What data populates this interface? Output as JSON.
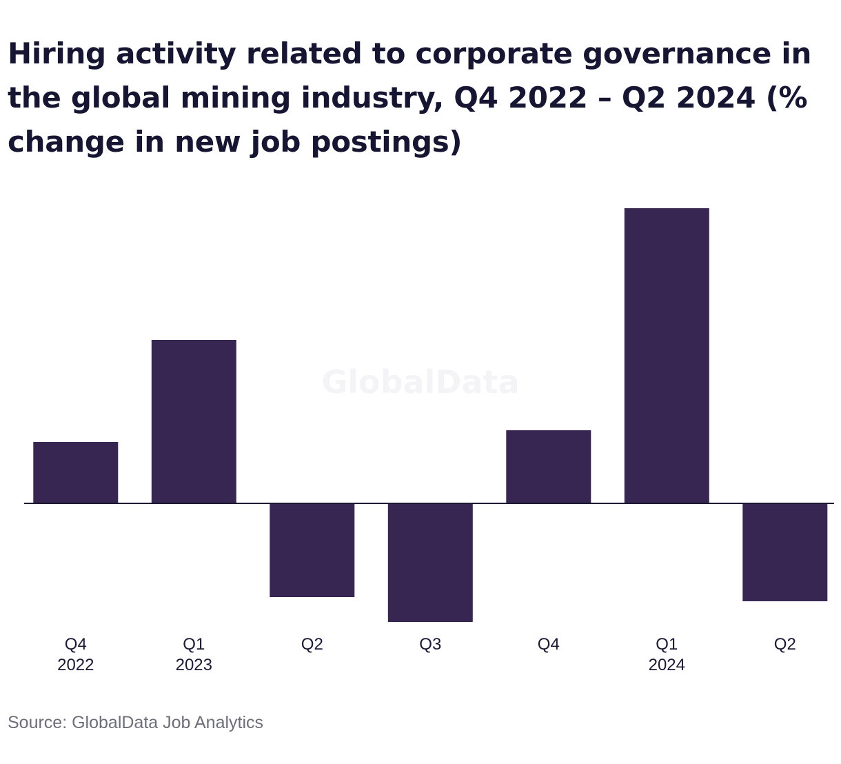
{
  "title": "Hiring activity related to corporate governance in the global mining industry, Q4 2022 – Q2 2024 (% change in new job postings)",
  "watermark": "GlobalData",
  "source": "Source: GlobalData Job Analytics",
  "colors": {
    "bar": "#372651",
    "axis": "#1c1a33",
    "text": "#161633",
    "source_text": "#6e6e78"
  },
  "chart_data": {
    "type": "bar",
    "title": "Hiring activity related to corporate governance in the global mining industry, Q4 2022 – Q2 2024 (% change in new job postings)",
    "xlabel": "",
    "ylabel": "",
    "grid": false,
    "legend": "none",
    "categories": [
      {
        "quarter": "Q4",
        "year": "2022"
      },
      {
        "quarter": "Q1",
        "year": "2023"
      },
      {
        "quarter": "Q2",
        "year": ""
      },
      {
        "quarter": "Q3",
        "year": ""
      },
      {
        "quarter": "Q4",
        "year": ""
      },
      {
        "quarter": "Q1",
        "year": "2024"
      },
      {
        "quarter": "Q2",
        "year": ""
      }
    ],
    "values": [
      8.9,
      23.7,
      -13.6,
      -17.2,
      10.6,
      42.8,
      -14.2
    ],
    "ylim": [
      -20,
      45
    ]
  }
}
